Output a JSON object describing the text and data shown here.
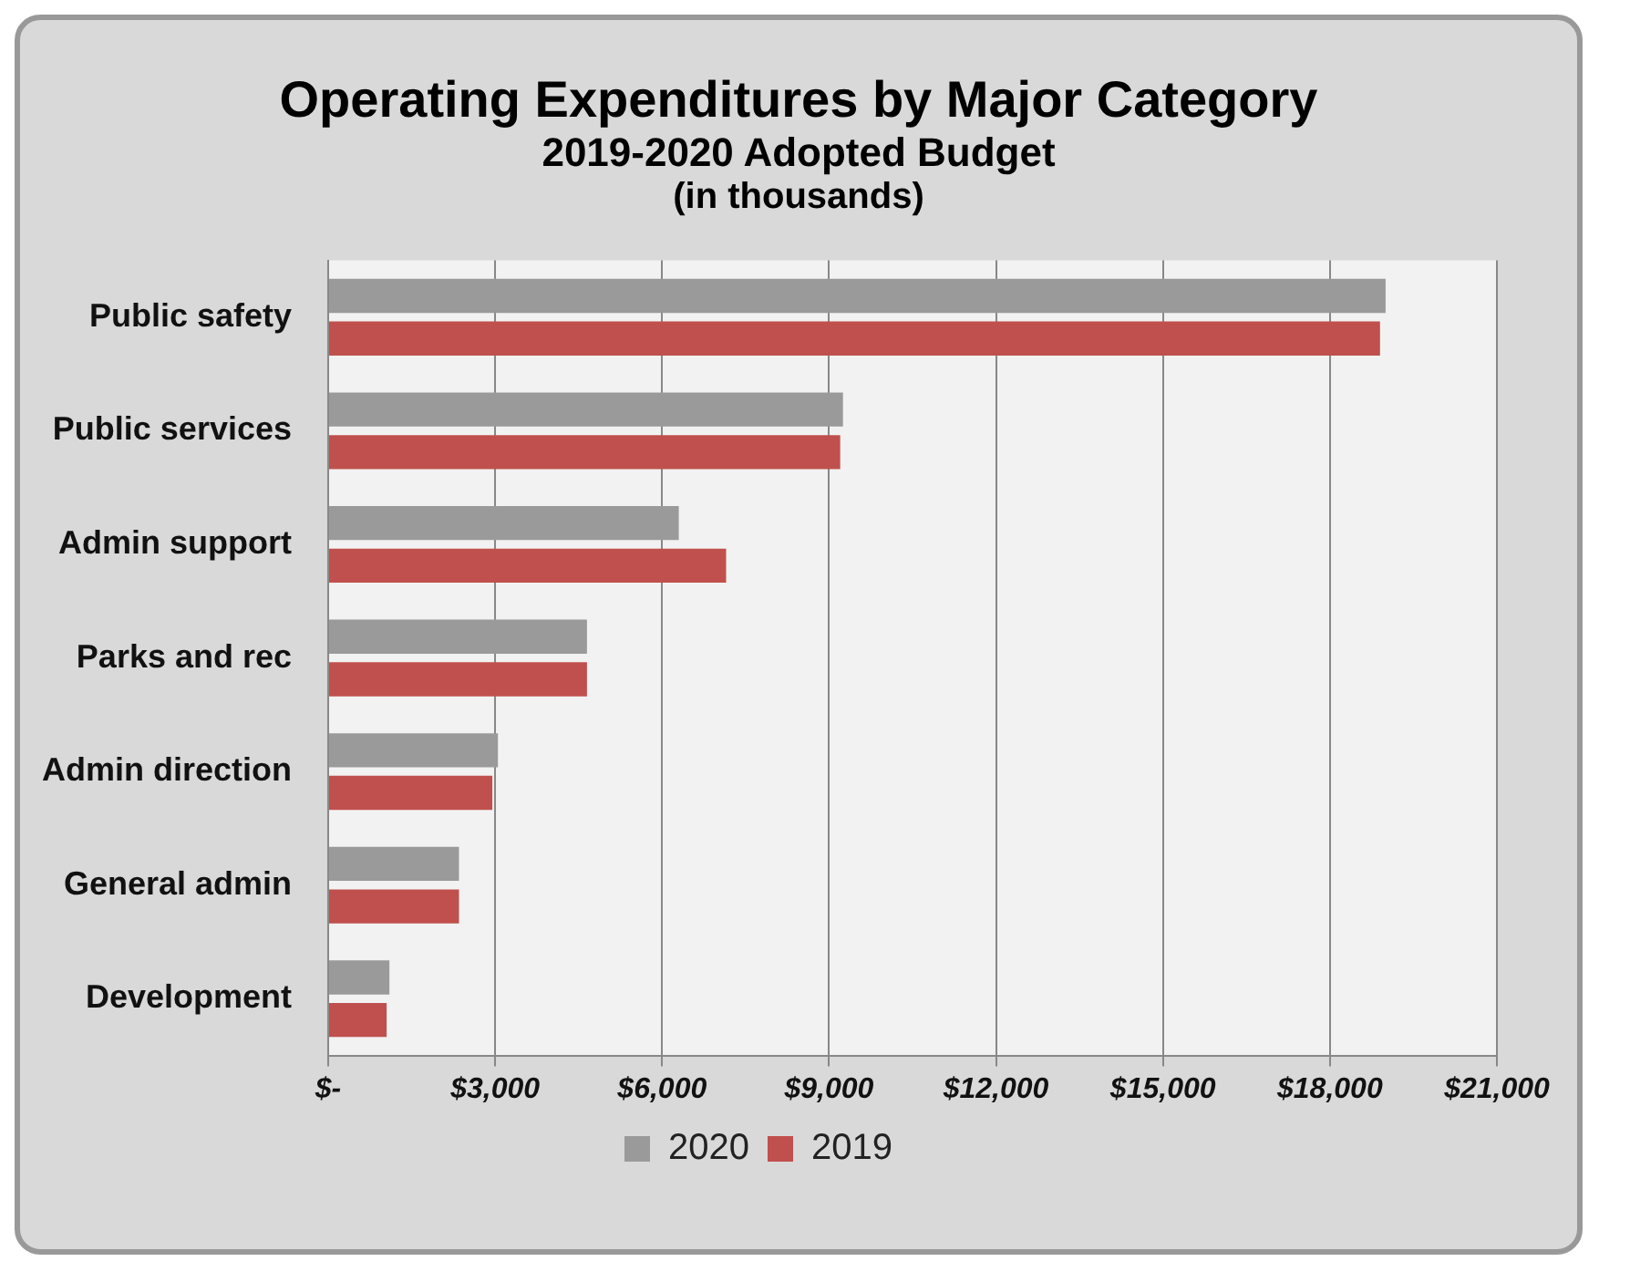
{
  "chart_data": {
    "type": "bar",
    "orientation": "horizontal",
    "title": "Operating Expenditures by Major Category",
    "subtitle": "2019-2020 Adopted Budget",
    "annotations": [
      "(in thousands)"
    ],
    "categories": [
      "Public safety",
      "Public services",
      "Admin support",
      "Parks and rec",
      "Admin direction",
      "General admin",
      "Development"
    ],
    "series": [
      {
        "name": "2020",
        "color": "#9a9a9a",
        "values": [
          19000,
          9250,
          6300,
          4650,
          3050,
          2350,
          1100
        ]
      },
      {
        "name": "2019",
        "color": "#c0504d",
        "values": [
          18900,
          9200,
          7150,
          4650,
          2950,
          2350,
          1050
        ]
      }
    ],
    "xlim": [
      0,
      21000
    ],
    "xticks": [
      {
        "value": 0,
        "label": "$-"
      },
      {
        "value": 3000,
        "label": "$3,000"
      },
      {
        "value": 6000,
        "label": "$6,000"
      },
      {
        "value": 9000,
        "label": "$9,000"
      },
      {
        "value": 12000,
        "label": "$12,000"
      },
      {
        "value": 15000,
        "label": "$15,000"
      },
      {
        "value": 18000,
        "label": "$18,000"
      },
      {
        "value": 21000,
        "label": "$21,000"
      }
    ],
    "grid": "x",
    "legend": "bottom"
  }
}
